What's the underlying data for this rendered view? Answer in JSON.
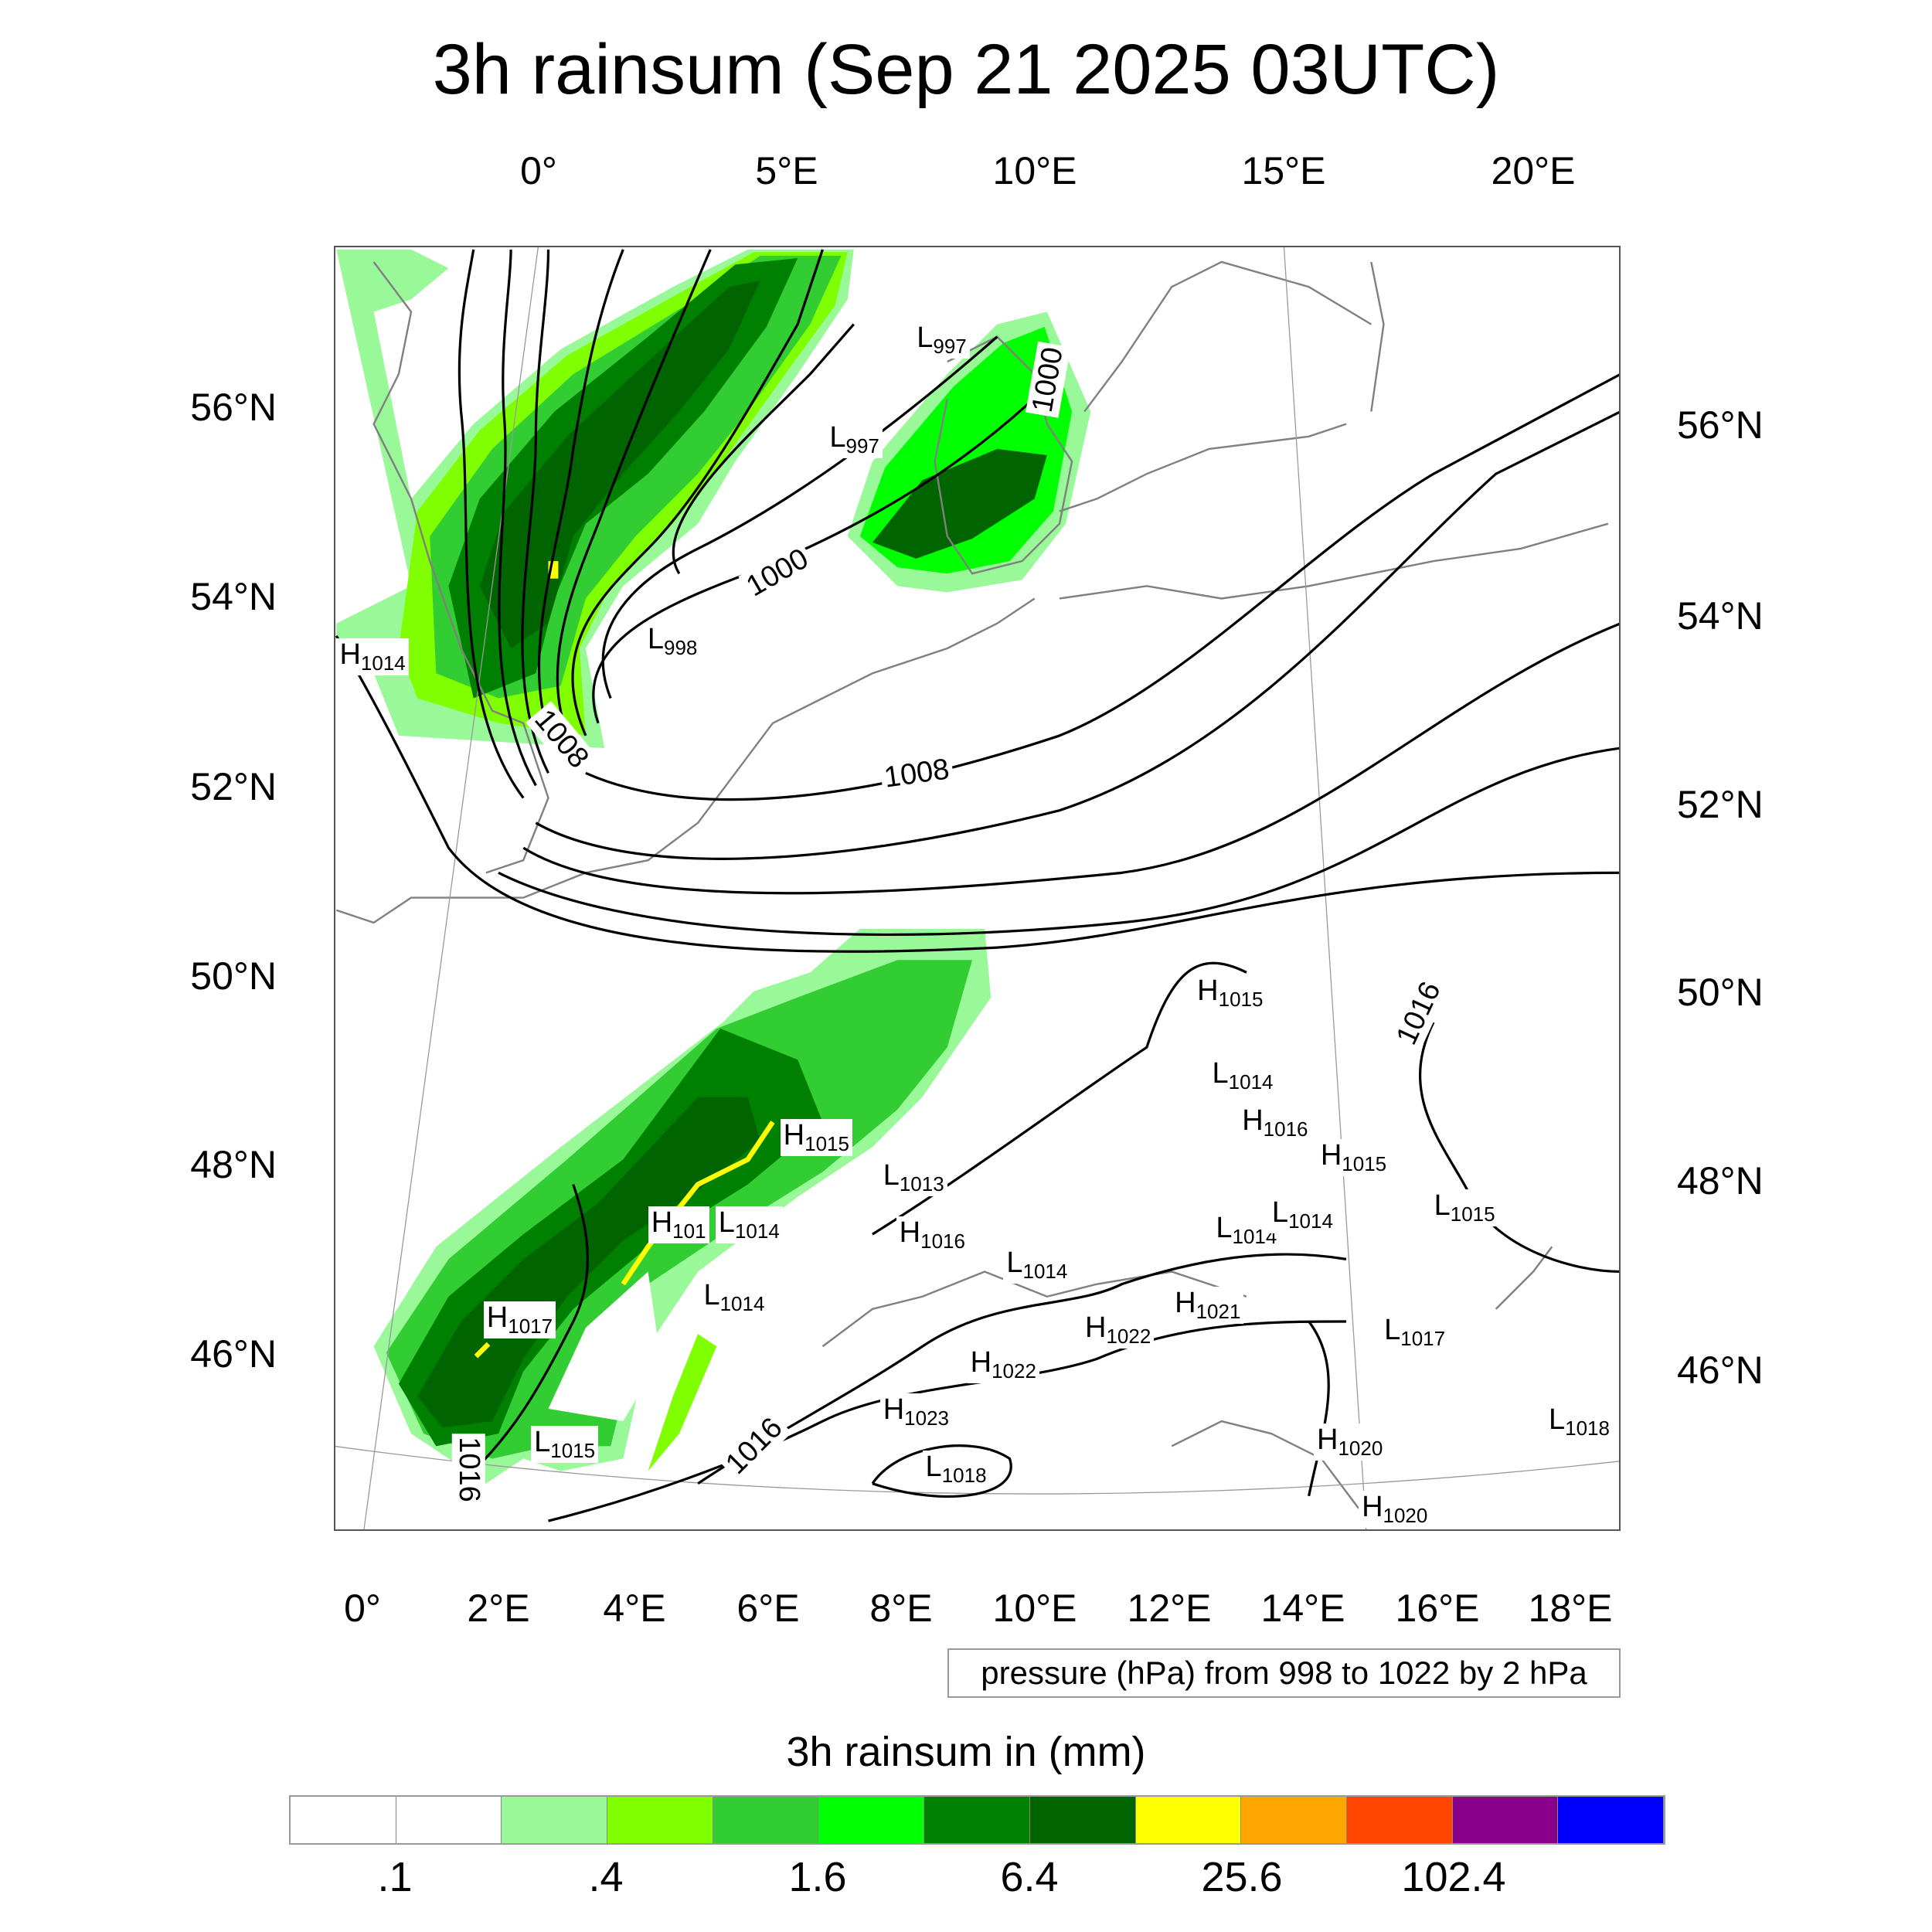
{
  "title": "3h rainsum (Sep 21 2025 03UTC)",
  "top_lon_labels": [
    "0°",
    "5°E",
    "10°E",
    "15°E",
    "20°E"
  ],
  "bottom_lon_labels": [
    "0°",
    "2°E",
    "4°E",
    "6°E",
    "8°E",
    "10°E",
    "12°E",
    "14°E",
    "16°E",
    "18°E"
  ],
  "left_lat_labels": [
    "56°N",
    "54°N",
    "52°N",
    "50°N",
    "48°N",
    "46°N"
  ],
  "right_lat_labels": [
    "56°N",
    "54°N",
    "52°N",
    "50°N",
    "48°N",
    "46°N"
  ],
  "contour_info": "pressure (hPa) from 998 to 1022 by 2 hPa",
  "contour_labels": [
    "1000",
    "1000",
    "1008",
    "1008",
    "1016",
    "1016",
    "1016"
  ],
  "pressure_centers": [
    {
      "t": "H",
      "v": "1014"
    },
    {
      "t": "L",
      "v": "997"
    },
    {
      "t": "L",
      "v": "997"
    },
    {
      "t": "L",
      "v": "998"
    },
    {
      "t": "H",
      "v": "1015"
    },
    {
      "t": "L",
      "v": "1014"
    },
    {
      "t": "H",
      "v": "1016"
    },
    {
      "t": "H",
      "v": "1015"
    },
    {
      "t": "H",
      "v": "1015"
    },
    {
      "t": "L",
      "v": "1013"
    },
    {
      "t": "H",
      "v": "101"
    },
    {
      "t": "L",
      "v": "1014"
    },
    {
      "t": "H",
      "v": "1016"
    },
    {
      "t": "L",
      "v": "1014"
    },
    {
      "t": "L",
      "v": "1014"
    },
    {
      "t": "L",
      "v": "1014"
    },
    {
      "t": "L",
      "v": "1015"
    },
    {
      "t": "L",
      "v": "1014"
    },
    {
      "t": "H",
      "v": "1021"
    },
    {
      "t": "H",
      "v": "1022"
    },
    {
      "t": "H",
      "v": "1017"
    },
    {
      "t": "H",
      "v": "1022"
    },
    {
      "t": "L",
      "v": "1017"
    },
    {
      "t": "H",
      "v": "1023"
    },
    {
      "t": "L",
      "v": "1015"
    },
    {
      "t": "L",
      "v": "1018"
    },
    {
      "t": "H",
      "v": "1020"
    },
    {
      "t": "L",
      "v": "1018"
    },
    {
      "t": "H",
      "v": "1020"
    }
  ],
  "colorbar": {
    "title": "3h rainsum in (mm)",
    "colors": [
      "#ffffff",
      "#ffffff",
      "#99f999",
      "#80ff00",
      "#32cd32",
      "#00ff00",
      "#008000",
      "#006400",
      "#ffff00",
      "#ffa500",
      "#ff4500",
      "#8b008b",
      "#0000ff"
    ],
    "labels": [
      ".1",
      ".4",
      "1.6",
      "6.4",
      "25.6",
      "102.4"
    ]
  }
}
